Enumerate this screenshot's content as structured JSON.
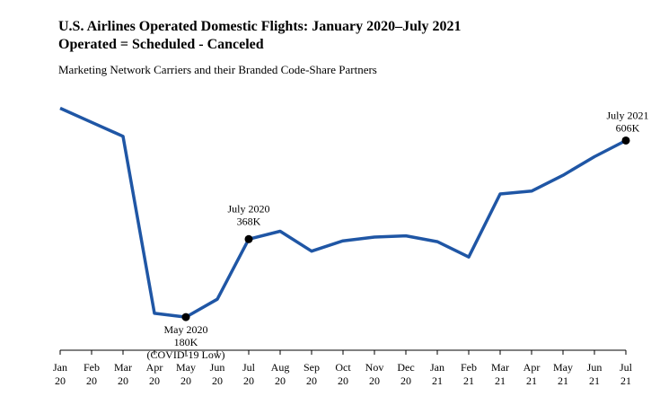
{
  "chart_data": {
    "type": "line",
    "title": "U.S. Airlines Operated Domestic Flights: January 2020–July 2021",
    "subtitle": "Operated = Scheduled - Canceled",
    "note": "Marketing Network Carriers and their Branded Code-Share Partners",
    "x": [
      {
        "month": "Jan",
        "year": "20"
      },
      {
        "month": "Feb",
        "year": "20"
      },
      {
        "month": "Mar",
        "year": "20"
      },
      {
        "month": "Apr",
        "year": "20"
      },
      {
        "month": "May",
        "year": "20"
      },
      {
        "month": "Jun",
        "year": "20"
      },
      {
        "month": "Jul",
        "year": "20"
      },
      {
        "month": "Aug",
        "year": "20"
      },
      {
        "month": "Sep",
        "year": "20"
      },
      {
        "month": "Oct",
        "year": "20"
      },
      {
        "month": "Nov",
        "year": "20"
      },
      {
        "month": "Dec",
        "year": "20"
      },
      {
        "month": "Jan",
        "year": "21"
      },
      {
        "month": "Feb",
        "year": "21"
      },
      {
        "month": "Mar",
        "year": "21"
      },
      {
        "month": "Apr",
        "year": "21"
      },
      {
        "month": "May",
        "year": "21"
      },
      {
        "month": "Jun",
        "year": "21"
      },
      {
        "month": "Jul",
        "year": "21"
      }
    ],
    "values": [
      684,
      650,
      616,
      189,
      180,
      223,
      368,
      387,
      339,
      364,
      373,
      376,
      362,
      325,
      477,
      484,
      522,
      567,
      606
    ],
    "ylim": [
      100,
      750
    ],
    "line_color": "#1f56a5",
    "annotations": [
      {
        "index": 4,
        "lines": [
          "May 2020",
          "180K",
          "(COVID-19 Low)"
        ]
      },
      {
        "index": 6,
        "lines": [
          "July 2020",
          "368K"
        ]
      },
      {
        "index": 18,
        "lines": [
          "July 2021",
          "606K"
        ]
      }
    ]
  }
}
